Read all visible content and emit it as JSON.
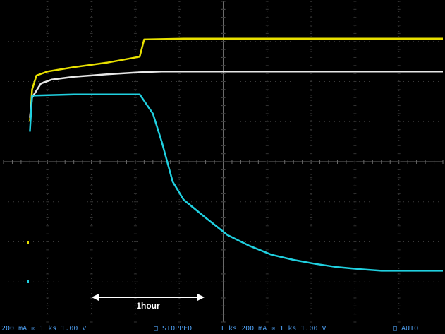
{
  "chart_data": {
    "type": "line",
    "xlim": [
      -0.12,
      1.88
    ],
    "ylim": [
      -4,
      4
    ],
    "grid": true,
    "series": [
      {
        "color": "#e8e000",
        "x": [
          0.0,
          0.01,
          0.03,
          0.08,
          0.2,
          0.35,
          0.5,
          0.52,
          0.7,
          1.0,
          1.3,
          1.6,
          1.88
        ],
        "y": [
          1.0,
          1.8,
          2.15,
          2.25,
          2.36,
          2.47,
          2.62,
          3.05,
          3.07,
          3.07,
          3.07,
          3.07,
          3.07
        ]
      },
      {
        "color": "#e8e8e8",
        "x": [
          0.0,
          0.01,
          0.05,
          0.1,
          0.2,
          0.35,
          0.5,
          0.6,
          0.8,
          1.0,
          1.3,
          1.6,
          1.88
        ],
        "y": [
          1.1,
          1.6,
          1.95,
          2.05,
          2.12,
          2.18,
          2.23,
          2.25,
          2.25,
          2.25,
          2.25,
          2.25,
          2.25
        ]
      },
      {
        "color": "#20d0e0",
        "x": [
          0.0,
          0.01,
          0.2,
          0.5,
          0.56,
          0.6,
          0.65,
          0.7,
          0.8,
          0.9,
          1.0,
          1.1,
          1.2,
          1.3,
          1.4,
          1.5,
          1.6,
          1.7,
          1.88
        ],
        "y": [
          0.75,
          1.65,
          1.68,
          1.68,
          1.2,
          0.5,
          -0.5,
          -0.95,
          -1.4,
          -1.83,
          -2.1,
          -2.32,
          -2.45,
          -2.55,
          -2.63,
          -2.68,
          -2.72,
          -2.72,
          -2.72
        ]
      }
    ],
    "annotation": "1hour",
    "annotation_span": [
      0.33,
      0.67
    ]
  },
  "statusbar": {
    "ch1": "200 mA  ☒  1 ks  1.00 V",
    "stopped": "□  STOPPED",
    "ch2": "1 ks  200 mA  ☒  1 ks  1.00 V",
    "auto": "□  AUTO"
  }
}
